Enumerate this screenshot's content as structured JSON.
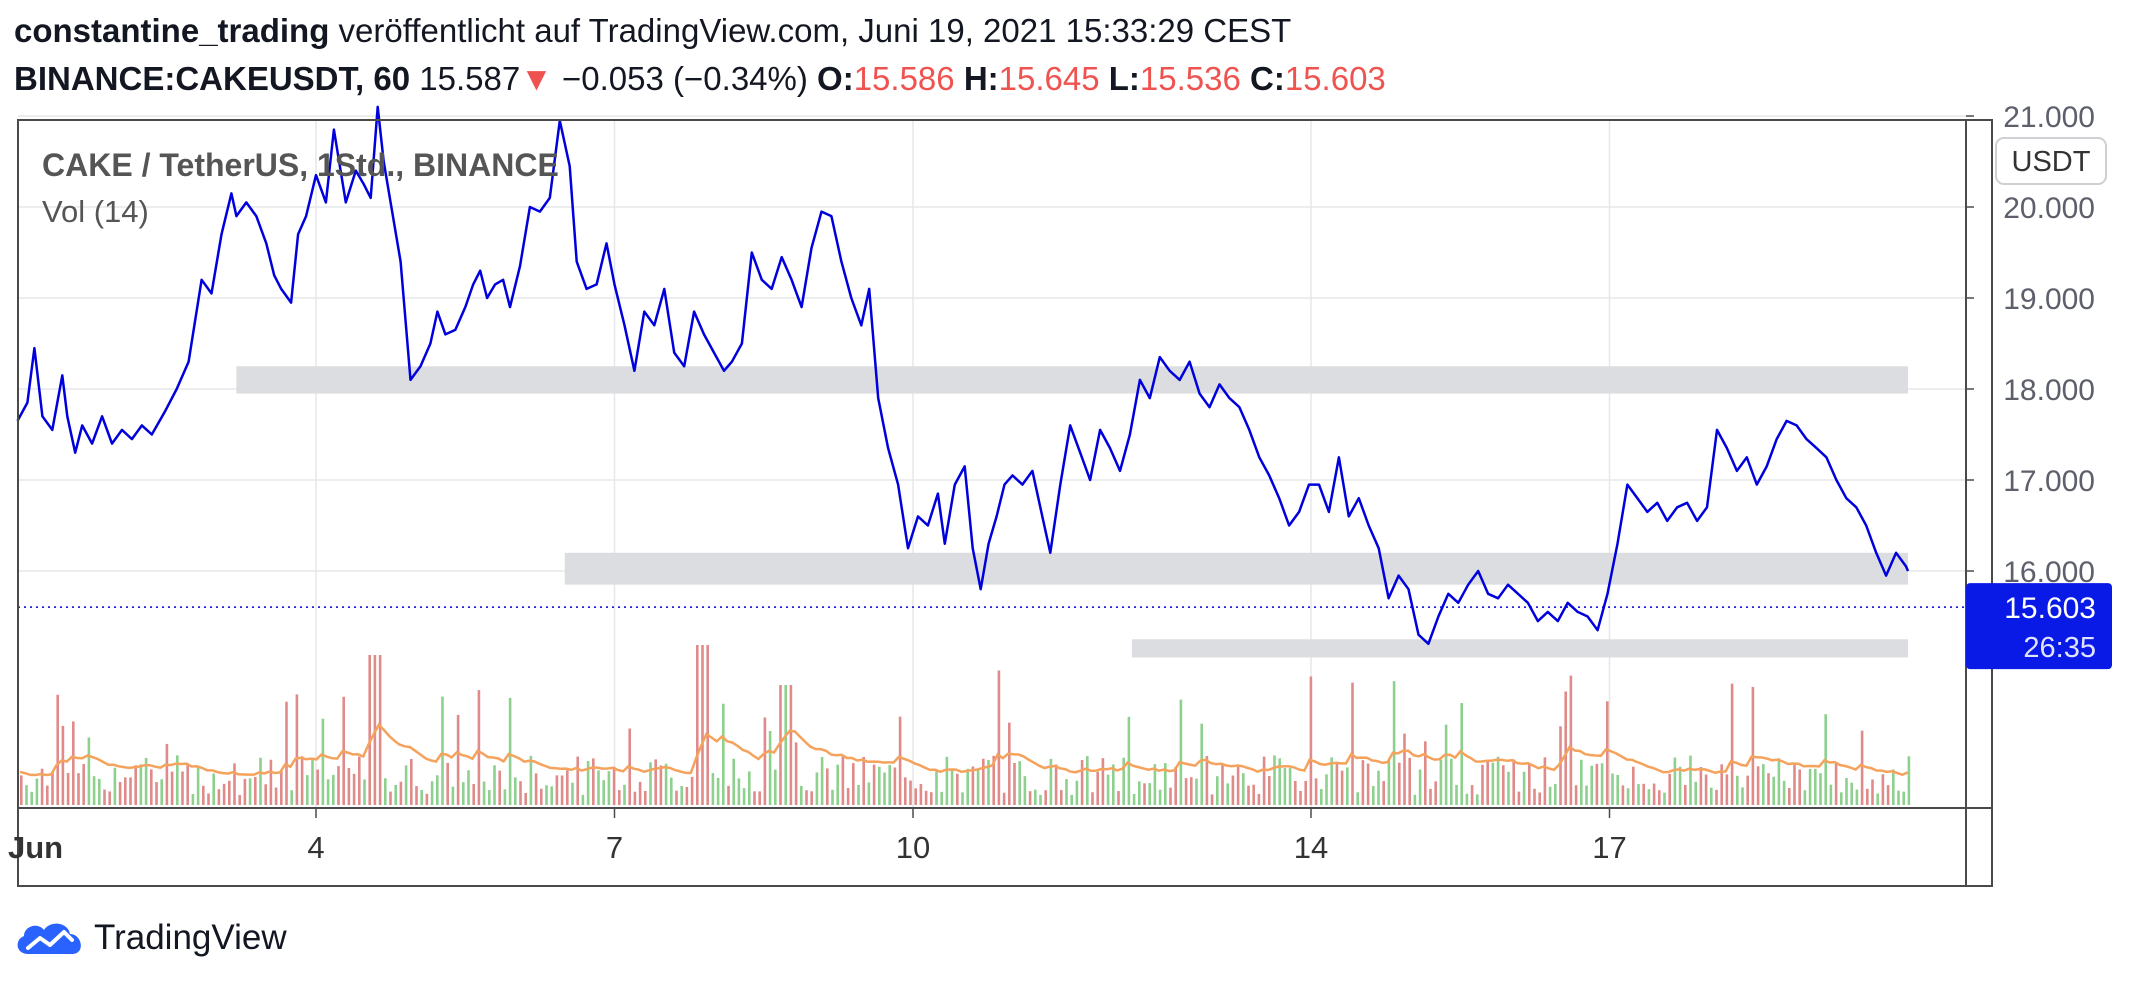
{
  "header": {
    "author": "constantine_trading",
    "published": "veröffentlicht auf TradingView.com, Juni 19, 2021 15:33:29 CEST",
    "symbol": "BINANCE:CAKEUSDT, 60",
    "last": "15.587",
    "change": "−0.053 (−0.34%)",
    "o_label": "O:",
    "o_value": "15.586",
    "h_label": "H:",
    "h_value": "15.645",
    "l_label": "L:",
    "l_value": "15.536",
    "c_label": "C:",
    "c_value": "15.603"
  },
  "colors": {
    "price_line": "#0000dd",
    "zones": "#dcdde1",
    "volume_up": "#8ed08e",
    "volume_down": "#e08a8a",
    "volume_ma": "#f5a25c",
    "grid": "#e6e7ea",
    "price_label_bg": "#0a1ae6",
    "axis_text": "#5d606b"
  },
  "icons": {
    "logo": "tradingview-cloud-icon"
  },
  "brand": {
    "name": "TradingView"
  },
  "chart_data": {
    "type": "line",
    "title": "CAKE / TetherUS, 1Std., BINANCE",
    "indicator": "Vol (14)",
    "currency": "USDT",
    "ylim": [
      15.0,
      21.5
    ],
    "yticks": [
      21.0,
      20.0,
      19.0,
      18.0,
      17.0,
      16.0
    ],
    "ytick_labels": [
      "21.000",
      "20.000",
      "19.000",
      "18.000",
      "17.000",
      "16.000"
    ],
    "xlim": [
      1.0,
      20.0
    ],
    "xticks": [
      4,
      7,
      10,
      14,
      17
    ],
    "xtick_labels": [
      "4",
      "7",
      "10",
      "14",
      "17"
    ],
    "xstart_label": "Jun",
    "last_price": 15.603,
    "last_price_label": "15.603",
    "countdown": "26:35",
    "series": [
      {
        "values": [
          [
            1.0,
            17.65
          ],
          [
            1.1,
            17.85
          ],
          [
            1.17,
            18.45
          ],
          [
            1.25,
            17.7
          ],
          [
            1.35,
            17.55
          ],
          [
            1.45,
            18.15
          ],
          [
            1.5,
            17.7
          ],
          [
            1.58,
            17.3
          ],
          [
            1.65,
            17.6
          ],
          [
            1.75,
            17.4
          ],
          [
            1.85,
            17.7
          ],
          [
            1.95,
            17.4
          ],
          [
            2.05,
            17.55
          ],
          [
            2.15,
            17.45
          ],
          [
            2.25,
            17.6
          ],
          [
            2.35,
            17.5
          ],
          [
            2.48,
            17.75
          ],
          [
            2.6,
            18.0
          ],
          [
            2.72,
            18.3
          ],
          [
            2.85,
            19.2
          ],
          [
            2.95,
            19.05
          ],
          [
            3.05,
            19.7
          ],
          [
            3.15,
            20.15
          ],
          [
            3.2,
            19.9
          ],
          [
            3.3,
            20.05
          ],
          [
            3.4,
            19.9
          ],
          [
            3.5,
            19.6
          ],
          [
            3.58,
            19.25
          ],
          [
            3.65,
            19.1
          ],
          [
            3.75,
            18.95
          ],
          [
            3.82,
            19.7
          ],
          [
            3.9,
            19.9
          ],
          [
            4.0,
            20.35
          ],
          [
            4.1,
            20.05
          ],
          [
            4.18,
            20.85
          ],
          [
            4.3,
            20.05
          ],
          [
            4.4,
            20.4
          ],
          [
            4.48,
            20.25
          ],
          [
            4.55,
            20.1
          ],
          [
            4.62,
            21.1
          ],
          [
            4.68,
            20.5
          ],
          [
            4.75,
            20.05
          ],
          [
            4.85,
            19.4
          ],
          [
            4.95,
            18.1
          ],
          [
            5.05,
            18.25
          ],
          [
            5.15,
            18.5
          ],
          [
            5.22,
            18.85
          ],
          [
            5.3,
            18.6
          ],
          [
            5.4,
            18.65
          ],
          [
            5.5,
            18.9
          ],
          [
            5.58,
            19.15
          ],
          [
            5.65,
            19.3
          ],
          [
            5.72,
            19.0
          ],
          [
            5.8,
            19.15
          ],
          [
            5.88,
            19.2
          ],
          [
            5.95,
            18.9
          ],
          [
            6.05,
            19.35
          ],
          [
            6.15,
            20.0
          ],
          [
            6.25,
            19.95
          ],
          [
            6.35,
            20.1
          ],
          [
            6.45,
            20.95
          ],
          [
            6.55,
            20.45
          ],
          [
            6.62,
            19.4
          ],
          [
            6.72,
            19.1
          ],
          [
            6.82,
            19.15
          ],
          [
            6.92,
            19.6
          ],
          [
            7.0,
            19.15
          ],
          [
            7.1,
            18.7
          ],
          [
            7.2,
            18.2
          ],
          [
            7.3,
            18.85
          ],
          [
            7.4,
            18.7
          ],
          [
            7.5,
            19.1
          ],
          [
            7.6,
            18.4
          ],
          [
            7.7,
            18.25
          ],
          [
            7.8,
            18.85
          ],
          [
            7.9,
            18.6
          ],
          [
            8.0,
            18.4
          ],
          [
            8.1,
            18.2
          ],
          [
            8.18,
            18.3
          ],
          [
            8.28,
            18.5
          ],
          [
            8.38,
            19.5
          ],
          [
            8.48,
            19.2
          ],
          [
            8.58,
            19.1
          ],
          [
            8.68,
            19.45
          ],
          [
            8.78,
            19.2
          ],
          [
            8.88,
            18.9
          ],
          [
            8.98,
            19.55
          ],
          [
            9.08,
            19.95
          ],
          [
            9.18,
            19.9
          ],
          [
            9.28,
            19.4
          ],
          [
            9.38,
            19.0
          ],
          [
            9.48,
            18.7
          ],
          [
            9.56,
            19.1
          ],
          [
            9.65,
            17.9
          ],
          [
            9.75,
            17.35
          ],
          [
            9.85,
            16.95
          ],
          [
            9.95,
            16.25
          ],
          [
            10.05,
            16.6
          ],
          [
            10.15,
            16.5
          ],
          [
            10.25,
            16.85
          ],
          [
            10.32,
            16.3
          ],
          [
            10.42,
            16.95
          ],
          [
            10.52,
            17.15
          ],
          [
            10.6,
            16.25
          ],
          [
            10.68,
            15.8
          ],
          [
            10.76,
            16.3
          ],
          [
            10.84,
            16.6
          ],
          [
            10.92,
            16.95
          ],
          [
            11.0,
            17.05
          ],
          [
            11.1,
            16.95
          ],
          [
            11.2,
            17.1
          ],
          [
            11.3,
            16.6
          ],
          [
            11.38,
            16.2
          ],
          [
            11.48,
            16.95
          ],
          [
            11.58,
            17.6
          ],
          [
            11.68,
            17.3
          ],
          [
            11.78,
            17.0
          ],
          [
            11.88,
            17.55
          ],
          [
            11.98,
            17.35
          ],
          [
            12.08,
            17.1
          ],
          [
            12.18,
            17.5
          ],
          [
            12.28,
            18.1
          ],
          [
            12.38,
            17.9
          ],
          [
            12.48,
            18.35
          ],
          [
            12.58,
            18.2
          ],
          [
            12.68,
            18.1
          ],
          [
            12.78,
            18.3
          ],
          [
            12.88,
            17.95
          ],
          [
            12.98,
            17.8
          ],
          [
            13.08,
            18.05
          ],
          [
            13.18,
            17.9
          ],
          [
            13.28,
            17.8
          ],
          [
            13.38,
            17.55
          ],
          [
            13.48,
            17.25
          ],
          [
            13.58,
            17.05
          ],
          [
            13.68,
            16.8
          ],
          [
            13.78,
            16.5
          ],
          [
            13.88,
            16.65
          ],
          [
            13.98,
            16.95
          ],
          [
            14.08,
            16.95
          ],
          [
            14.18,
            16.65
          ],
          [
            14.28,
            17.25
          ],
          [
            14.38,
            16.6
          ],
          [
            14.48,
            16.8
          ],
          [
            14.58,
            16.5
          ],
          [
            14.68,
            16.25
          ],
          [
            14.78,
            15.7
          ],
          [
            14.88,
            15.95
          ],
          [
            14.98,
            15.8
          ],
          [
            15.08,
            15.3
          ],
          [
            15.18,
            15.2
          ],
          [
            15.28,
            15.5
          ],
          [
            15.38,
            15.75
          ],
          [
            15.48,
            15.65
          ],
          [
            15.58,
            15.85
          ],
          [
            15.68,
            16.0
          ],
          [
            15.78,
            15.75
          ],
          [
            15.88,
            15.7
          ],
          [
            15.98,
            15.85
          ],
          [
            16.08,
            15.75
          ],
          [
            16.18,
            15.65
          ],
          [
            16.28,
            15.45
          ],
          [
            16.38,
            15.55
          ],
          [
            16.48,
            15.45
          ],
          [
            16.58,
            15.65
          ],
          [
            16.68,
            15.55
          ],
          [
            16.78,
            15.5
          ],
          [
            16.88,
            15.35
          ],
          [
            16.98,
            15.75
          ],
          [
            17.08,
            16.3
          ],
          [
            17.18,
            16.95
          ],
          [
            17.28,
            16.8
          ],
          [
            17.38,
            16.65
          ],
          [
            17.48,
            16.75
          ],
          [
            17.58,
            16.55
          ],
          [
            17.68,
            16.7
          ],
          [
            17.78,
            16.75
          ],
          [
            17.88,
            16.55
          ],
          [
            17.98,
            16.7
          ],
          [
            18.08,
            17.55
          ],
          [
            18.18,
            17.35
          ],
          [
            18.28,
            17.1
          ],
          [
            18.38,
            17.25
          ],
          [
            18.48,
            16.95
          ],
          [
            18.58,
            17.15
          ],
          [
            18.68,
            17.45
          ],
          [
            18.78,
            17.65
          ],
          [
            18.88,
            17.6
          ],
          [
            18.98,
            17.45
          ],
          [
            19.08,
            17.35
          ],
          [
            19.18,
            17.25
          ],
          [
            19.28,
            17.0
          ],
          [
            19.38,
            16.8
          ],
          [
            19.48,
            16.7
          ],
          [
            19.58,
            16.5
          ],
          [
            19.68,
            16.2
          ],
          [
            19.78,
            15.95
          ],
          [
            19.88,
            16.2
          ],
          [
            19.98,
            16.05
          ],
          [
            20.0,
            16.0
          ]
        ]
      }
    ],
    "zones": [
      {
        "x0": 3.2,
        "x1": 20.0,
        "y0": 17.95,
        "y1": 18.25
      },
      {
        "x0": 6.5,
        "x1": 20.0,
        "y0": 15.85,
        "y1": 16.2
      },
      {
        "x0": 12.2,
        "x1": 20.0,
        "y0": 15.05,
        "y1": 15.25
      }
    ],
    "volume": {
      "series_name": "Vol (14)"
    }
  }
}
